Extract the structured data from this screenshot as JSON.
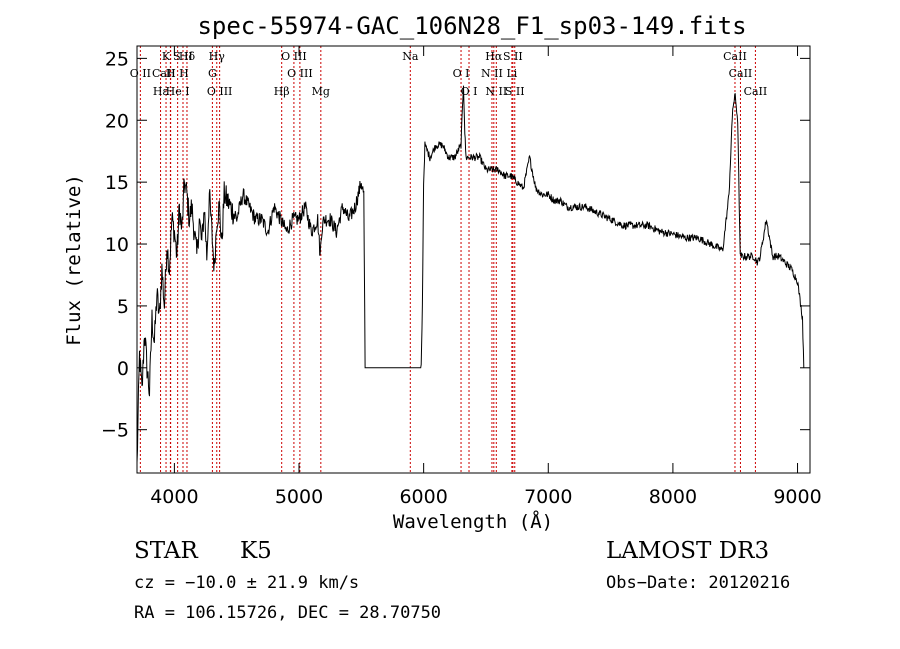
{
  "chart_data": {
    "type": "line",
    "title": "spec-55974-GAC_106N28_F1_sp03-149.fits",
    "xlabel": "Wavelength (Å)",
    "ylabel": "Flux (relative)",
    "xlim": [
      3700,
      9100
    ],
    "ylim": [
      -8.5,
      26
    ],
    "xticks": [
      4000,
      5000,
      6000,
      7000,
      8000,
      9000
    ],
    "xtick_labels": [
      "4000",
      "5000",
      "6000",
      "7000",
      "8000",
      "9000"
    ],
    "yticks": [
      -5,
      0,
      5,
      10,
      15,
      20,
      25
    ],
    "ytick_labels": [
      "−5",
      "0",
      "5",
      "10",
      "15",
      "20",
      "25"
    ],
    "series": [
      {
        "name": "spectrum",
        "x": [
          3700,
          3720,
          3740,
          3760,
          3780,
          3800,
          3820,
          3840,
          3860,
          3880,
          3900,
          3920,
          3940,
          3960,
          3980,
          4000,
          4020,
          4040,
          4060,
          4080,
          4100,
          4120,
          4140,
          4160,
          4180,
          4200,
          4220,
          4240,
          4260,
          4280,
          4300,
          4320,
          4340,
          4360,
          4380,
          4400,
          4450,
          4500,
          4550,
          4600,
          4650,
          4700,
          4750,
          4800,
          4850,
          4900,
          4950,
          5000,
          5050,
          5100,
          5150,
          5170,
          5180,
          5200,
          5250,
          5300,
          5350,
          5400,
          5450,
          5500,
          5520,
          5530,
          5540,
          5600,
          5700,
          5800,
          5900,
          5980,
          5990,
          6000,
          6010,
          6050,
          6100,
          6150,
          6200,
          6250,
          6300,
          6320,
          6330,
          6340,
          6400,
          6450,
          6500,
          6550,
          6600,
          6650,
          6700,
          6750,
          6800,
          6850,
          6900,
          6950,
          7000,
          7050,
          7100,
          7150,
          7200,
          7300,
          7400,
          7500,
          7600,
          7700,
          7800,
          7900,
          8000,
          8100,
          8200,
          8300,
          8400,
          8450,
          8480,
          8500,
          8520,
          8540,
          8560,
          8600,
          8650,
          8680,
          8700,
          8750,
          8800,
          8850,
          8900,
          8950,
          9000,
          9040,
          9050
        ],
        "y": [
          -8,
          1,
          -2,
          3,
          0,
          -2,
          4,
          2,
          6,
          4,
          8,
          5,
          10,
          8,
          12,
          11,
          9,
          13,
          11,
          15,
          14,
          12,
          13,
          11,
          9,
          12,
          10,
          13,
          9,
          14,
          11,
          8,
          12,
          13,
          10,
          14,
          13,
          12,
          14,
          13,
          12,
          12,
          11,
          13,
          12,
          11,
          12,
          12,
          13,
          11,
          12,
          9,
          11,
          12,
          12,
          11,
          13,
          12,
          13,
          15,
          14,
          0,
          0,
          0,
          0,
          0,
          0,
          0,
          5,
          15,
          18,
          17,
          18,
          18,
          17,
          17,
          18,
          23,
          19,
          17,
          17,
          17,
          16,
          16,
          16,
          15.5,
          15.5,
          15,
          14.5,
          17,
          14.5,
          14,
          14,
          13.5,
          13.5,
          13,
          13,
          13,
          12.5,
          12,
          11.5,
          11.5,
          11.5,
          11,
          10.8,
          10.5,
          10.5,
          10,
          9.5,
          14,
          21,
          22,
          20,
          9,
          9,
          9,
          9,
          8.5,
          9,
          12,
          9,
          9,
          8.5,
          8,
          7,
          4,
          0
        ]
      }
    ],
    "line_markers": [
      {
        "label": "Hδ",
        "x": 4101
      },
      {
        "label": "CaII H",
        "x": 3968
      },
      {
        "label": "He I",
        "x": 4026
      },
      {
        "label": "K",
        "x": 3933
      },
      {
        "label": "O II",
        "x": 3727
      },
      {
        "label": "Hε",
        "x": 3889
      },
      {
        "label": "S II",
        "x": 4069
      },
      {
        "label": "H",
        "x": 3970
      },
      {
        "label": "O III",
        "x": 4363
      },
      {
        "label": "Hγ",
        "x": 4340
      },
      {
        "label": "G",
        "x": 4305
      },
      {
        "label": "Hβ",
        "x": 4861
      },
      {
        "label": "O III",
        "x": 4959
      },
      {
        "label": "O III",
        "x": 5007
      },
      {
        "label": "Mg",
        "x": 5175
      },
      {
        "label": "Na",
        "x": 5893
      },
      {
        "label": "O I",
        "x": 6300
      },
      {
        "label": "O I",
        "x": 6364
      },
      {
        "label": "Hα",
        "x": 6563
      },
      {
        "label": "N II",
        "x": 6548
      },
      {
        "label": "N II",
        "x": 6583
      },
      {
        "label": "S II",
        "x": 6716
      },
      {
        "label": "Li",
        "x": 6708
      },
      {
        "label": "S II",
        "x": 6731
      },
      {
        "label": "CaII",
        "x": 8498
      },
      {
        "label": "CaII",
        "x": 8542
      },
      {
        "label": "CaII",
        "x": 8662
      }
    ],
    "marker_color": "#cc0000"
  },
  "info": {
    "class_label": "STAR",
    "subclass": "K5",
    "survey": "LAMOST DR3",
    "cz_line": "cz = −10.0 ± 21.9 km/s",
    "obs_date": "Obs−Date: 20120216",
    "radec_line": "RA = 106.15726, DEC =  28.70750"
  }
}
